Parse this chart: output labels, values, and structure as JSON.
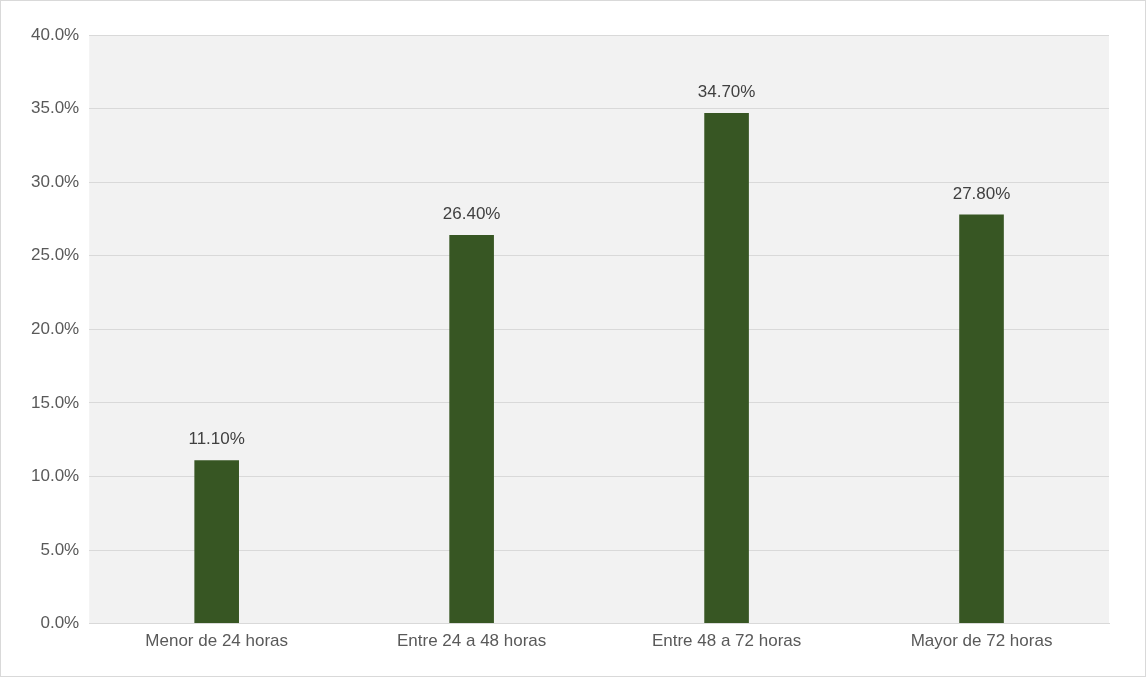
{
  "chart_data": {
    "type": "bar",
    "categories": [
      "Menor de 24 horas",
      "Entre 24 a 48 horas",
      "Entre 48 a 72 horas",
      "Mayor de 72 horas"
    ],
    "values": [
      11.1,
      26.4,
      34.7,
      27.8
    ],
    "color": "#375623",
    "value_labels": [
      "11.10%",
      "26.40%",
      "34.70%",
      "27.80%"
    ],
    "ylim": [
      0,
      40
    ],
    "yticks": [
      {
        "value": 0,
        "label": "0.0%"
      },
      {
        "value": 5,
        "label": "5.0%"
      },
      {
        "value": 10,
        "label": "10.0%"
      },
      {
        "value": 15,
        "label": "15.0%"
      },
      {
        "value": 20,
        "label": "20.0%"
      },
      {
        "value": 25,
        "label": "25.0%"
      },
      {
        "value": 30,
        "label": "30.0%"
      },
      {
        "value": 35,
        "label": "35.0%"
      },
      {
        "value": 40,
        "label": "40.0%"
      }
    ],
    "grid": "y"
  }
}
